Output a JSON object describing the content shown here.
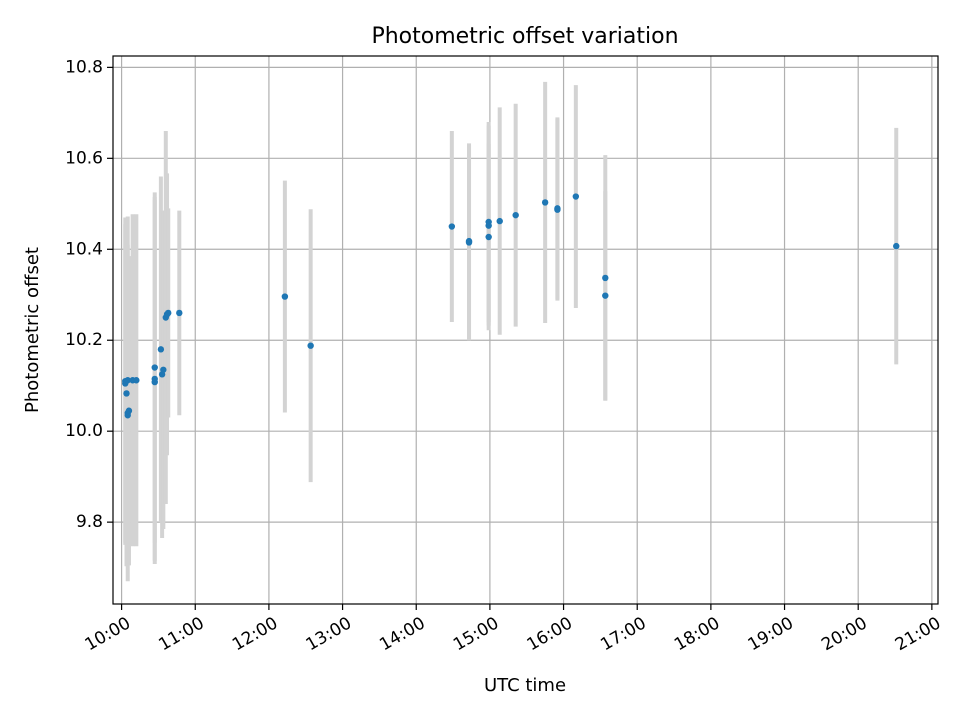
{
  "chart_data": {
    "type": "scatter",
    "title": "Photometric offset variation",
    "xlabel": "UTC time",
    "ylabel": "Photometric offset",
    "xlim": [
      "09:53",
      "21:05"
    ],
    "ylim": [
      9.62,
      10.825
    ],
    "grid": true,
    "x_ticks": [
      "10:00",
      "11:00",
      "12:00",
      "13:00",
      "14:00",
      "15:00",
      "16:00",
      "17:00",
      "18:00",
      "19:00",
      "20:00",
      "21:00"
    ],
    "y_ticks": [
      9.8,
      10.0,
      10.2,
      10.4,
      10.6,
      10.8
    ],
    "colors": {
      "point": "#1f77b4",
      "error_bar": "#d3d3d3",
      "grid": "#b0b0b0"
    },
    "points": [
      {
        "x": "10:03",
        "y": 10.11,
        "err": 0.36
      },
      {
        "x": "10:03",
        "y": 10.105,
        "err": 0.35
      },
      {
        "x": "10:04",
        "y": 10.083,
        "err": 0.38
      },
      {
        "x": "10:05",
        "y": 10.112,
        "err": 0.36
      },
      {
        "x": "10:05",
        "y": 10.04,
        "err": 0.37
      },
      {
        "x": "10:05",
        "y": 10.035,
        "err": 0.31
      },
      {
        "x": "10:06",
        "y": 10.045,
        "err": 0.34
      },
      {
        "x": "10:09",
        "y": 10.112,
        "err": 0.365
      },
      {
        "x": "10:12",
        "y": 10.112,
        "err": 0.365
      },
      {
        "x": "10:27",
        "y": 10.14,
        "err": 0.385
      },
      {
        "x": "10:27",
        "y": 10.115,
        "err": 0.4
      },
      {
        "x": "10:27",
        "y": 10.108,
        "err": 0.4
      },
      {
        "x": "10:32",
        "y": 10.18,
        "err": 0.38
      },
      {
        "x": "10:33",
        "y": 10.125,
        "err": 0.36
      },
      {
        "x": "10:34",
        "y": 10.135,
        "err": 0.35
      },
      {
        "x": "10:36",
        "y": 10.25,
        "err": 0.41
      },
      {
        "x": "10:37",
        "y": 10.257,
        "err": 0.31
      },
      {
        "x": "10:38",
        "y": 10.26,
        "err": 0.23
      },
      {
        "x": "10:47",
        "y": 10.26,
        "err": 0.225
      },
      {
        "x": "12:13",
        "y": 10.296,
        "err": 0.255
      },
      {
        "x": "12:34",
        "y": 10.188,
        "err": 0.3
      },
      {
        "x": "14:29",
        "y": 10.45,
        "err": 0.21
      },
      {
        "x": "14:43",
        "y": 10.418,
        "err": 0.215
      },
      {
        "x": "14:43",
        "y": 10.415,
        "err": 0.215
      },
      {
        "x": "14:59",
        "y": 10.46,
        "err": 0.22
      },
      {
        "x": "14:59",
        "y": 10.452,
        "err": 0.22
      },
      {
        "x": "14:59",
        "y": 10.427,
        "err": 0.205
      },
      {
        "x": "15:08",
        "y": 10.462,
        "err": 0.25
      },
      {
        "x": "15:21",
        "y": 10.475,
        "err": 0.245
      },
      {
        "x": "15:45",
        "y": 10.503,
        "err": 0.265
      },
      {
        "x": "15:55",
        "y": 10.49,
        "err": 0.2
      },
      {
        "x": "15:55",
        "y": 10.487,
        "err": 0.2
      },
      {
        "x": "16:10",
        "y": 10.516,
        "err": 0.245
      },
      {
        "x": "16:34",
        "y": 10.337,
        "err": 0.27
      },
      {
        "x": "16:34",
        "y": 10.298,
        "err": 0.23
      },
      {
        "x": "20:31",
        "y": 10.407,
        "err": 0.26
      }
    ]
  }
}
